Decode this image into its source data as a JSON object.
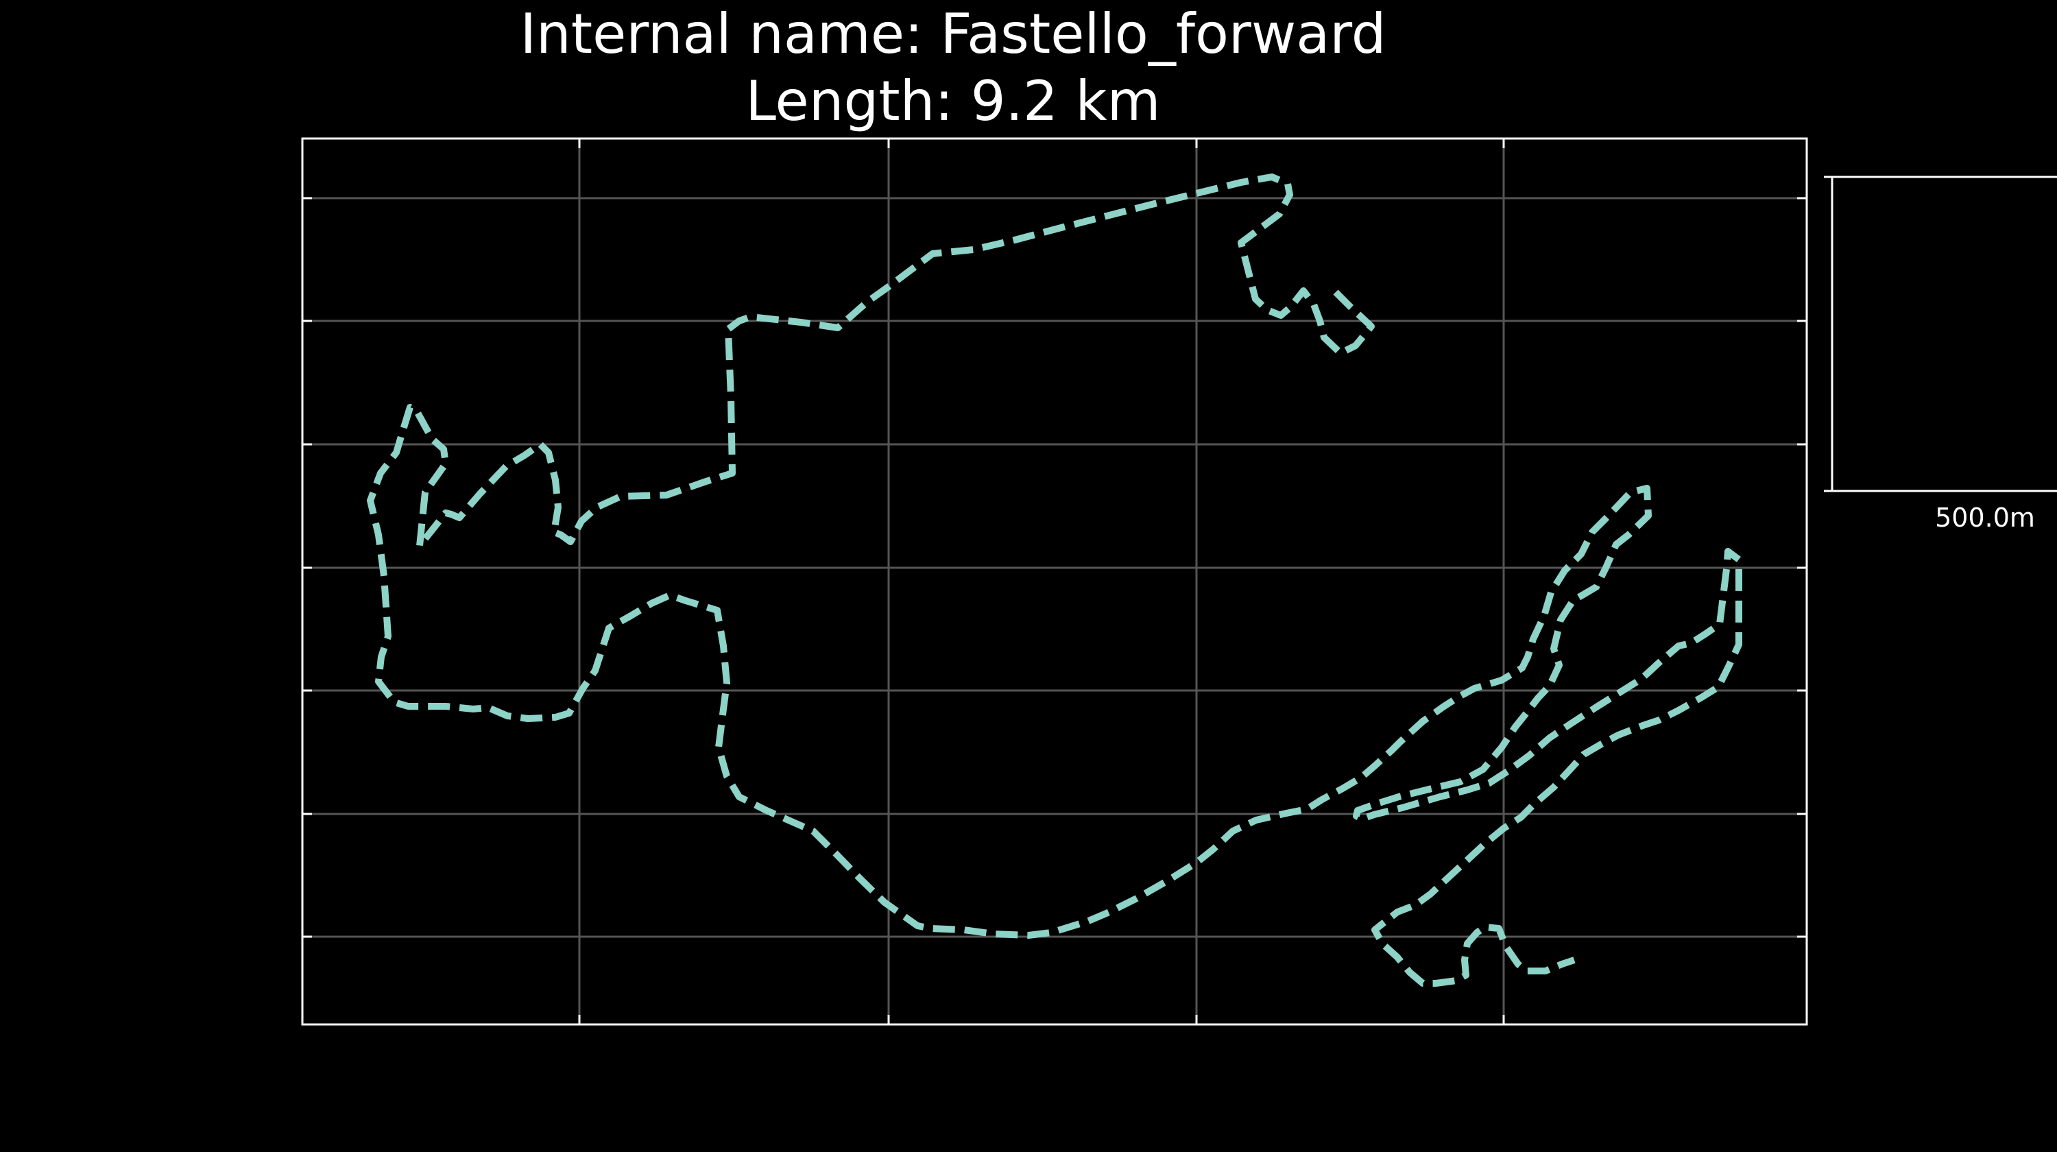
{
  "map": {
    "title_line1": "Internal name: Fastello_forward",
    "title_line2": "Length: 9.2 km",
    "scale_bar_label": "500.0m",
    "colors": {
      "background": "#000000",
      "track": "#8dd3c7",
      "grid": "#555555",
      "frame": "#ffffff"
    },
    "grid": true
  }
}
